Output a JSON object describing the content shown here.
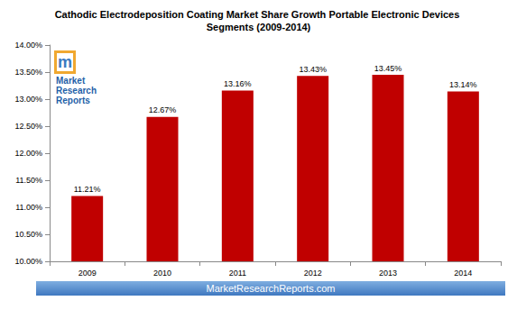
{
  "chart_data": {
    "type": "bar",
    "title": "Cathodic Electrodeposition Coating Market Share Growth Portable Electronic Devices Segments (2009-2014)",
    "categories": [
      "2009",
      "2010",
      "2011",
      "2012",
      "2013",
      "2014"
    ],
    "values": [
      11.21,
      12.67,
      13.16,
      13.43,
      13.45,
      13.14
    ],
    "value_labels": [
      "11.21%",
      "12.67%",
      "13.16%",
      "13.43%",
      "13.45%",
      "13.14%"
    ],
    "color": "#c00000",
    "ylim": [
      10,
      14
    ],
    "yticks": [
      {
        "value": 10,
        "label": "10.00%"
      },
      {
        "value": 10.5,
        "label": "10.50%"
      },
      {
        "value": 11,
        "label": "11.00%"
      },
      {
        "value": 11.5,
        "label": "11.50%"
      },
      {
        "value": 12,
        "label": "12.00%"
      },
      {
        "value": 12.5,
        "label": "12.50%"
      },
      {
        "value": 13,
        "label": "13.00%"
      },
      {
        "value": 13.5,
        "label": "13.50%"
      },
      {
        "value": 14,
        "label": "14.00%"
      }
    ],
    "grid": false,
    "data_labels": true,
    "annotations": [
      "Market Research Reports",
      "MarketResearchReports.com"
    ]
  }
}
